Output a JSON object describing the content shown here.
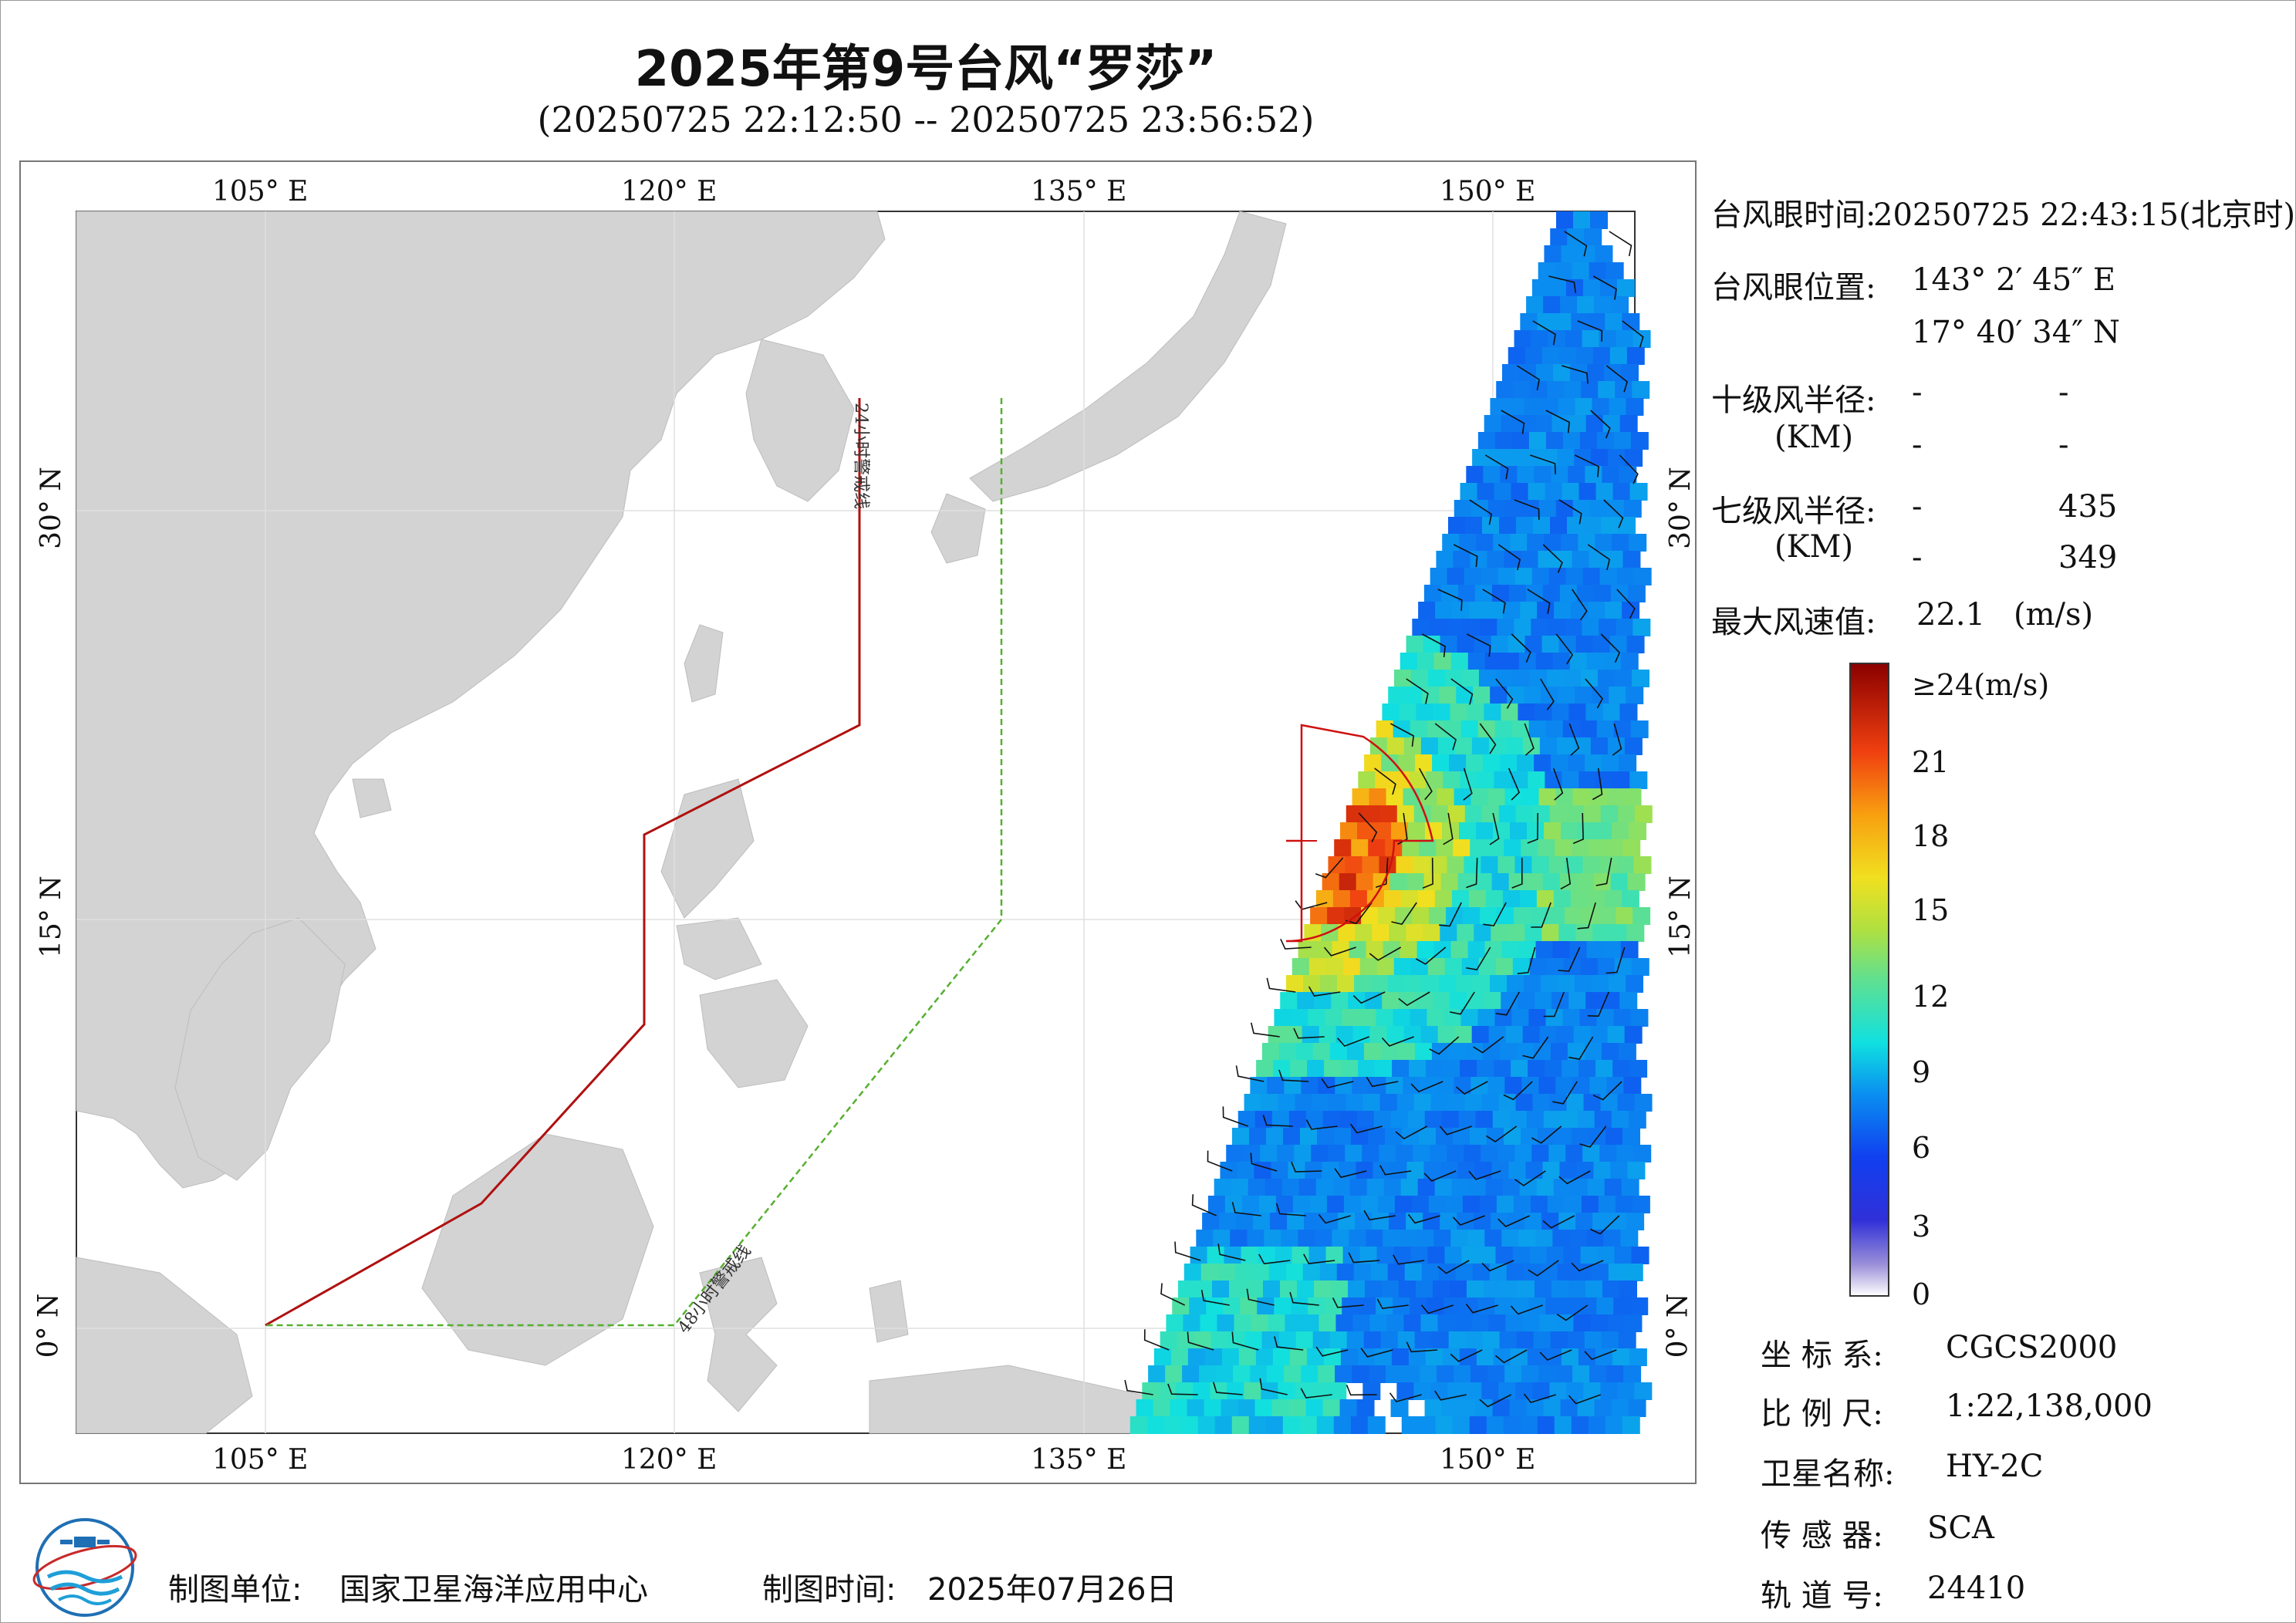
{
  "title": "2025年第9号台风“罗莎”",
  "subtitle": "(20250725 22:12:50 -- 20250725 23:56:52)",
  "map": {
    "lon_ticks": [
      "105° E",
      "120° E",
      "135° E",
      "150° E"
    ],
    "lat_ticks": [
      "30° N",
      "15° N",
      "0° N"
    ],
    "warning_line_24h": "24小时警戒线",
    "warning_line_48h": "48小时警戒线",
    "colors": {
      "land": "#d3d3d3",
      "ocean": "#ffffff",
      "line24": "#b01010",
      "line48": "#55b030",
      "gust_ring": "#d01010"
    }
  },
  "info": {
    "eye_time_label": "台风眼时间:",
    "eye_time_value": "20250725 22:43:15(北京时)",
    "eye_pos_label": "台风眼位置:",
    "eye_lon": "143° 2′ 45″ E",
    "eye_lat": "17° 40′ 34″ N",
    "r10_label": "十级风半径:",
    "r10_unit": "(KM)",
    "r10_values": [
      "-",
      "-",
      "-",
      "-"
    ],
    "r7_label": "七级风半径:",
    "r7_unit": "(KM)",
    "r7_values": [
      "-",
      "435",
      "-",
      "349"
    ],
    "max_wind_label": "最大风速值:",
    "max_wind_value": "22.1",
    "max_wind_unit": "(m/s)"
  },
  "colorbar": {
    "labels": [
      "≥24(m/s)",
      "21",
      "18",
      "15",
      "12",
      "9",
      "6",
      "3",
      "0"
    ]
  },
  "meta": {
    "crs_label": "坐 标 系:",
    "crs_value": "CGCS2000",
    "scale_label": "比 例 尺:",
    "scale_value": "1:22,138,000",
    "satellite_label": "卫星名称:",
    "satellite_value": "HY-2C",
    "sensor_label": "传 感 器:",
    "sensor_value": "SCA",
    "orbit_label": "轨 道 号:",
    "orbit_value": "24410"
  },
  "footer": {
    "maker_label": "制图单位:",
    "maker_value": "国家卫星海洋应用中心",
    "date_label": "制图时间:",
    "date_value": "2025年07月26日"
  }
}
